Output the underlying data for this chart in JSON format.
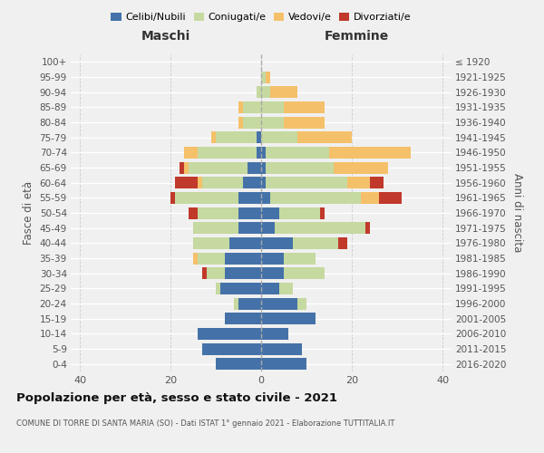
{
  "age_groups": [
    "0-4",
    "5-9",
    "10-14",
    "15-19",
    "20-24",
    "25-29",
    "30-34",
    "35-39",
    "40-44",
    "45-49",
    "50-54",
    "55-59",
    "60-64",
    "65-69",
    "70-74",
    "75-79",
    "80-84",
    "85-89",
    "90-94",
    "95-99",
    "100+"
  ],
  "birth_years": [
    "2016-2020",
    "2011-2015",
    "2006-2010",
    "2001-2005",
    "1996-2000",
    "1991-1995",
    "1986-1990",
    "1981-1985",
    "1976-1980",
    "1971-1975",
    "1966-1970",
    "1961-1965",
    "1956-1960",
    "1951-1955",
    "1946-1950",
    "1941-1945",
    "1936-1940",
    "1931-1935",
    "1926-1930",
    "1921-1925",
    "≤ 1920"
  ],
  "colors": {
    "celibi": "#4472a8",
    "coniugati": "#c5d9a0",
    "vedovi": "#f5c06a",
    "divorziati": "#c0392b"
  },
  "maschi": {
    "celibi": [
      10,
      13,
      14,
      8,
      5,
      9,
      8,
      8,
      7,
      5,
      5,
      5,
      4,
      3,
      1,
      1,
      0,
      0,
      0,
      0,
      0
    ],
    "coniugati": [
      0,
      0,
      0,
      0,
      1,
      1,
      4,
      6,
      8,
      10,
      9,
      14,
      9,
      13,
      13,
      9,
      4,
      4,
      1,
      0,
      0
    ],
    "vedovi": [
      0,
      0,
      0,
      0,
      0,
      0,
      0,
      1,
      0,
      0,
      0,
      0,
      1,
      1,
      3,
      1,
      1,
      1,
      0,
      0,
      0
    ],
    "divorziati": [
      0,
      0,
      0,
      0,
      0,
      0,
      1,
      0,
      0,
      0,
      2,
      1,
      5,
      1,
      0,
      0,
      0,
      0,
      0,
      0,
      0
    ]
  },
  "femmine": {
    "celibi": [
      10,
      9,
      6,
      12,
      8,
      4,
      5,
      5,
      7,
      3,
      4,
      2,
      1,
      1,
      1,
      0,
      0,
      0,
      0,
      0,
      0
    ],
    "coniugati": [
      0,
      0,
      0,
      0,
      2,
      3,
      9,
      7,
      10,
      20,
      9,
      20,
      18,
      15,
      14,
      8,
      5,
      5,
      2,
      1,
      0
    ],
    "vedovi": [
      0,
      0,
      0,
      0,
      0,
      0,
      0,
      0,
      0,
      0,
      0,
      4,
      5,
      12,
      18,
      12,
      9,
      9,
      6,
      1,
      0
    ],
    "divorziati": [
      0,
      0,
      0,
      0,
      0,
      0,
      0,
      0,
      2,
      1,
      1,
      5,
      3,
      0,
      0,
      0,
      0,
      0,
      0,
      0,
      0
    ]
  },
  "title": "Popolazione per età, sesso e stato civile - 2021",
  "subtitle": "COMUNE DI TORRE DI SANTA MARIA (SO) - Dati ISTAT 1° gennaio 2021 - Elaborazione TUTTITALIA.IT",
  "xlabel_left": "Maschi",
  "xlabel_right": "Femmine",
  "ylabel_left": "Fasce di età",
  "ylabel_right": "Anni di nascita",
  "xlim": 42,
  "legend_labels": [
    "Celibi/Nubili",
    "Coniugati/e",
    "Vedovi/e",
    "Divorziati/e"
  ],
  "background_color": "#f0f0f0",
  "grid_color": "#ffffff"
}
